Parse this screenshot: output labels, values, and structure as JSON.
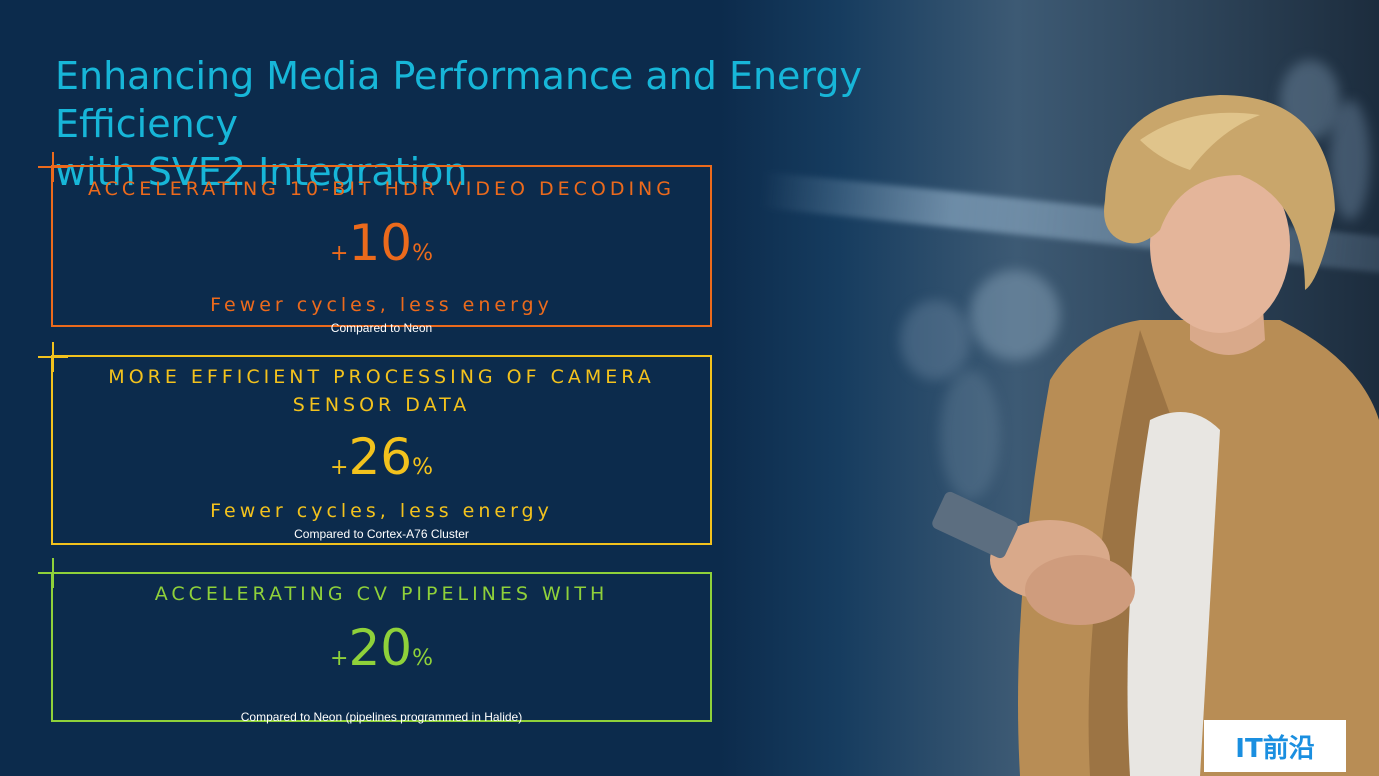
{
  "slide": {
    "title_line1": "Enhancing Media Performance and Energy Efficiency",
    "title_line2": "with SVE2 Integration"
  },
  "cards": [
    {
      "heading": "ACCELERATING 10-BIT HDR VIDEO DECODING",
      "plus": "+",
      "value": "10",
      "pct": "%",
      "sub": "Fewer cycles, less energy",
      "note": "Compared to Neon",
      "color": "#ec6a1c"
    },
    {
      "heading": "MORE EFFICIENT PROCESSING OF CAMERA SENSOR DATA",
      "plus": "+",
      "value": "26",
      "pct": "%",
      "sub": "Fewer cycles, less energy",
      "note": "Compared to Cortex-A76 Cluster",
      "color": "#f3c21d"
    },
    {
      "heading": "ACCELERATING CV PIPELINES WITH",
      "plus": "+",
      "value": "20",
      "pct": "%",
      "sub": "",
      "note": "Compared to Neon (pipelines programmed in Halide)",
      "color": "#8fd13a"
    }
  ],
  "watermark": {
    "text": "IT前沿",
    "color": "#1a8fe0"
  },
  "colors": {
    "background": "#0c2b4c",
    "title": "#17b6d8"
  }
}
